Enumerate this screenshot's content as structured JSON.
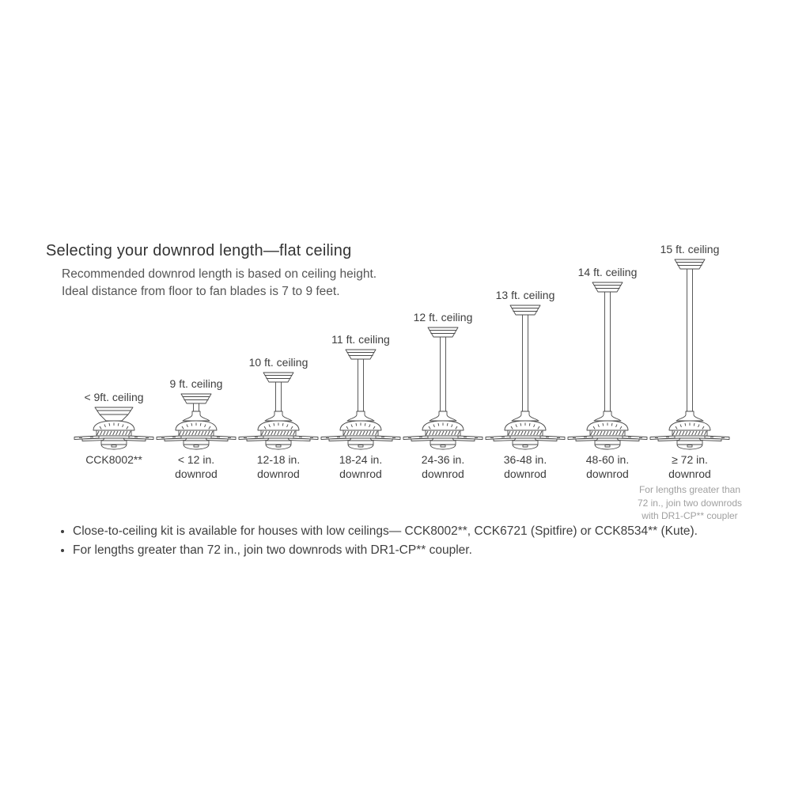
{
  "page": {
    "title": "Selecting your downrod length—flat ceiling",
    "subtitle": "Recommended downrod length is based on ceiling height.\nIdeal distance from floor to fan blades is 7 to 9 feet."
  },
  "diagram": {
    "fans": [
      {
        "ceiling_label": "< 9ft. ceiling",
        "downrod_label": "CCK8002**",
        "rod": 0,
        "type": "close-to-ceiling"
      },
      {
        "ceiling_label": "9 ft. ceiling",
        "downrod_label": "< 12 in.\ndownrod",
        "rod": 10,
        "type": "downrod"
      },
      {
        "ceiling_label": "10 ft. ceiling",
        "downrod_label": "12-18 in.\ndownrod",
        "rod": 37,
        "type": "downrod"
      },
      {
        "ceiling_label": "11 ft. ceiling",
        "downrod_label": "18-24 in.\ndownrod",
        "rod": 66,
        "type": "downrod"
      },
      {
        "ceiling_label": "12 ft. ceiling",
        "downrod_label": "24-36 in.\ndownrod",
        "rod": 94,
        "type": "downrod"
      },
      {
        "ceiling_label": "13 ft. ceiling",
        "downrod_label": "36-48 in.\ndownrod",
        "rod": 122,
        "type": "downrod"
      },
      {
        "ceiling_label": "14 ft. ceiling",
        "downrod_label": "48-60 in.\ndownrod",
        "rod": 151,
        "type": "downrod"
      },
      {
        "ceiling_label": "15 ft. ceiling",
        "downrod_label": "≥ 72 in.\ndownrod",
        "rod": 180,
        "type": "downrod",
        "note": "For lengths greater than\n72 in., join two downrods\nwith DR1-CP** coupler"
      }
    ]
  },
  "notes": {
    "bullets": [
      "Close-to-ceiling kit is available for houses with low ceilings— CCK8002**, CCK6721 (Spitfire) or CCK8534** (Kute).",
      "For lengths greater than 72 in., join two downrods with DR1-CP** coupler."
    ]
  },
  "colors": {
    "line": "#4a4a4a",
    "title_text": "#333333",
    "label_text": "#3d3d3d",
    "subtitle_text": "#555555",
    "note_text": "#a0a0a0",
    "background": "#ffffff"
  }
}
